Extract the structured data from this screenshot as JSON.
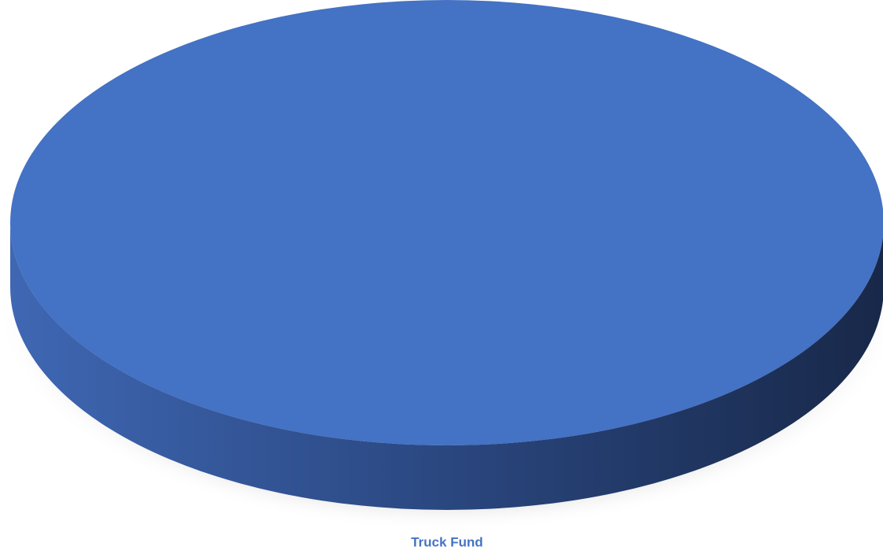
{
  "chart_data": {
    "type": "pie",
    "categories": [
      "Truck Fund"
    ],
    "values": [
      100
    ],
    "colors": [
      "#4472c4"
    ]
  }
}
